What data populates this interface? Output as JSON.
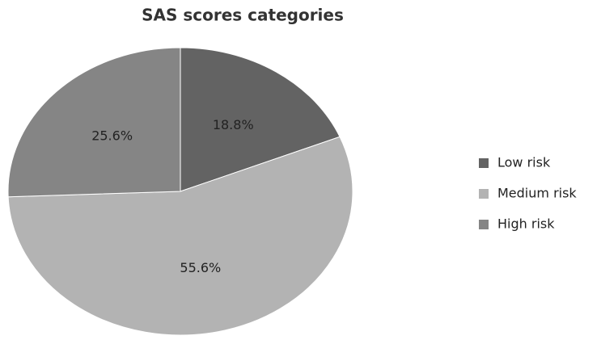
{
  "chart_data": {
    "type": "pie",
    "title": "SAS scores categories",
    "categories": [
      "Low risk",
      "Medium risk",
      "High risk"
    ],
    "values": [
      18.8,
      55.6,
      25.6
    ],
    "value_labels": [
      "18.8%",
      "55.6%",
      "25.6%"
    ],
    "colors": [
      "#636363",
      "#b3b3b3",
      "#858585"
    ],
    "legend": "right"
  }
}
